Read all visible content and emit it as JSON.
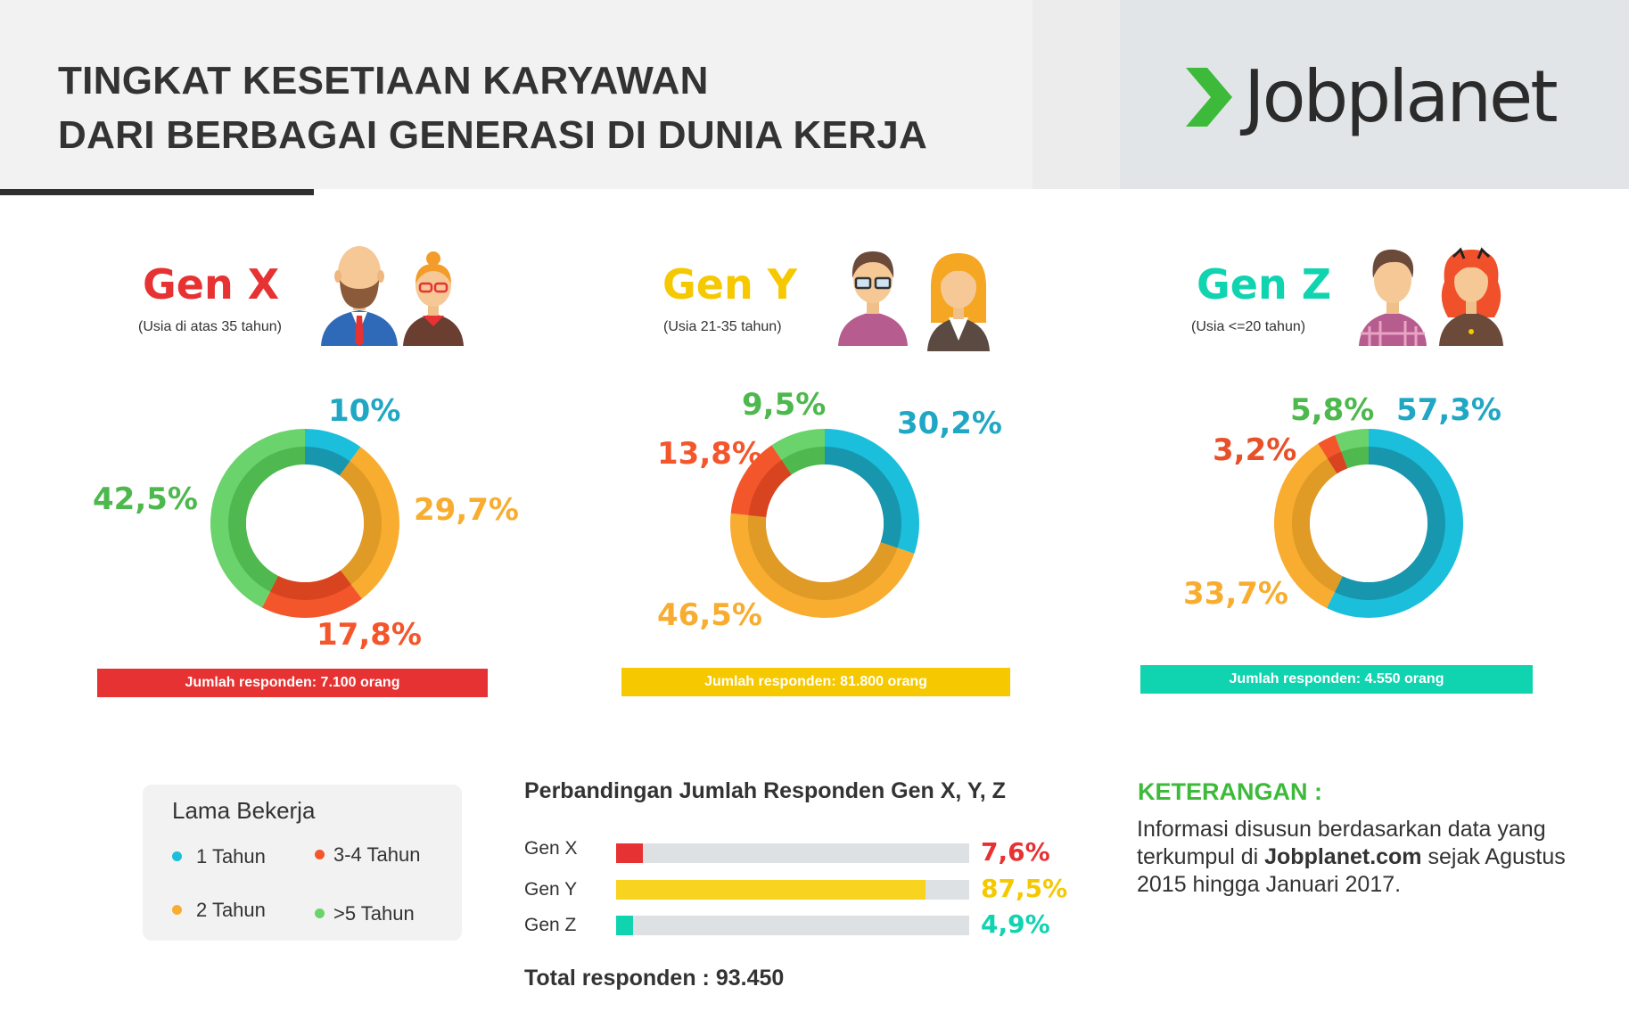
{
  "header": {
    "title_line1": "TINGKAT KESETIAAN KARYAWAN",
    "title_line2": "DARI BERBAGAI GENERASI DI DUNIA KERJA",
    "logo_text": "Jobplanet"
  },
  "colors": {
    "gen_x": "#e63232",
    "gen_y": "#f5c800",
    "gen_z": "#10d3b0",
    "tahun_1": "#1bbfdc",
    "tahun_2": "#f8ad30",
    "tahun_3_4": "#f4562c",
    "tahun_5": "#6bd36b",
    "logo_green": "#3dba3a"
  },
  "generations": [
    {
      "name": "Gen X",
      "age": "(Usia di atas 35 tahun)",
      "labels": [
        "10%",
        "29,7%",
        "17,8%",
        "42,5%"
      ],
      "respondents": "Jumlah responden: 7.100 orang"
    },
    {
      "name": "Gen Y",
      "age": "(Usia 21-35 tahun)",
      "labels": [
        "30,2%",
        "46,5%",
        "13,8%",
        "9,5%"
      ],
      "respondents": "Jumlah responden: 81.800 orang"
    },
    {
      "name": "Gen Z",
      "age": "(Usia <=20 tahun)",
      "labels": [
        "57,3%",
        "33,7%",
        "3,2%",
        "5,8%"
      ],
      "respondents": "Jumlah responden: 4.550 orang"
    }
  ],
  "legend": {
    "title": "Lama Bekerja",
    "items": [
      "1 Tahun",
      "3-4 Tahun",
      "2 Tahun",
      ">5 Tahun"
    ]
  },
  "comparison": {
    "title": "Perbandingan Jumlah Responden Gen X, Y, Z",
    "rows": [
      {
        "label": "Gen X",
        "pct": "7,6%"
      },
      {
        "label": "Gen Y",
        "pct": "87,5%"
      },
      {
        "label": "Gen Z",
        "pct": "4,9%"
      }
    ],
    "total": "Total responden : 93.450"
  },
  "keterangan": {
    "title": "KETERANGAN :",
    "text_before": "Informasi disusun berdasarkan data yang terkumpul di ",
    "text_bold": "Jobplanet.com",
    "text_after": " sejak Agustus 2015 hingga Januari 2017."
  },
  "chart_data": [
    {
      "type": "pie",
      "title": "Gen X",
      "categories": [
        "1 Tahun",
        "2 Tahun",
        "3-4 Tahun",
        ">5 Tahun"
      ],
      "values": [
        10,
        29.7,
        17.8,
        42.5
      ]
    },
    {
      "type": "pie",
      "title": "Gen Y",
      "categories": [
        "1 Tahun",
        "2 Tahun",
        "3-4 Tahun",
        ">5 Tahun"
      ],
      "values": [
        30.2,
        46.5,
        13.8,
        9.5
      ]
    },
    {
      "type": "pie",
      "title": "Gen Z",
      "categories": [
        "1 Tahun",
        "2 Tahun",
        "3-4 Tahun",
        ">5 Tahun"
      ],
      "values": [
        57.3,
        33.7,
        3.2,
        5.8
      ]
    },
    {
      "type": "bar",
      "title": "Perbandingan Jumlah Responden Gen X, Y, Z",
      "categories": [
        "Gen X",
        "Gen Y",
        "Gen Z"
      ],
      "values": [
        7.6,
        87.5,
        4.9
      ],
      "ylim": [
        0,
        100
      ]
    }
  ]
}
